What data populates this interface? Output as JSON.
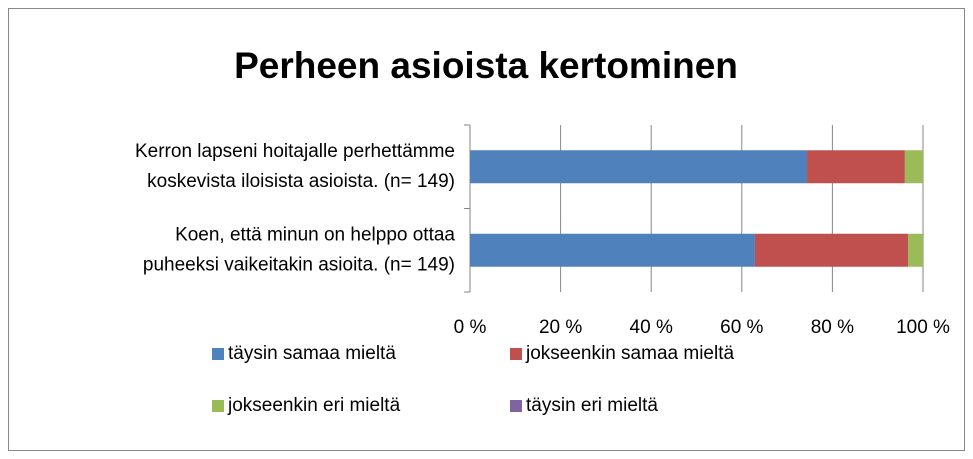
{
  "chart_data": {
    "type": "stacked_bar_horizontal",
    "title": "Perheen asioista kertominen",
    "categories": [
      "Kerron lapseni hoitajalle perhettämme\nkoskevista iloisista asioista. (n= 149)",
      "Koen, että minun on helppo ottaa\npuheeksi vaikeitakin asioita. (n= 149)"
    ],
    "series": [
      {
        "name": "täysin samaa mieltä",
        "color": "#4f81bd",
        "values": [
          74.4,
          62.9
        ]
      },
      {
        "name": "jokseenkin samaa mieltä",
        "color": "#c0504d",
        "values": [
          21.6,
          33.8
        ]
      },
      {
        "name": "jokseenkin eri mieltä",
        "color": "#9bbb59",
        "values": [
          4.0,
          3.3
        ]
      },
      {
        "name": "täysin eri mieltä",
        "color": "#8064a2",
        "values": [
          0,
          0
        ]
      }
    ],
    "xlim": [
      0,
      100
    ],
    "xticks": [
      {
        "value": 0,
        "label": "0 %"
      },
      {
        "value": 20,
        "label": "20 %"
      },
      {
        "value": 40,
        "label": "40 %"
      },
      {
        "value": 60,
        "label": "60 %"
      },
      {
        "value": 80,
        "label": "80 %"
      },
      {
        "value": 100,
        "label": "100 %"
      }
    ],
    "grid": true,
    "legend": "bottom"
  }
}
